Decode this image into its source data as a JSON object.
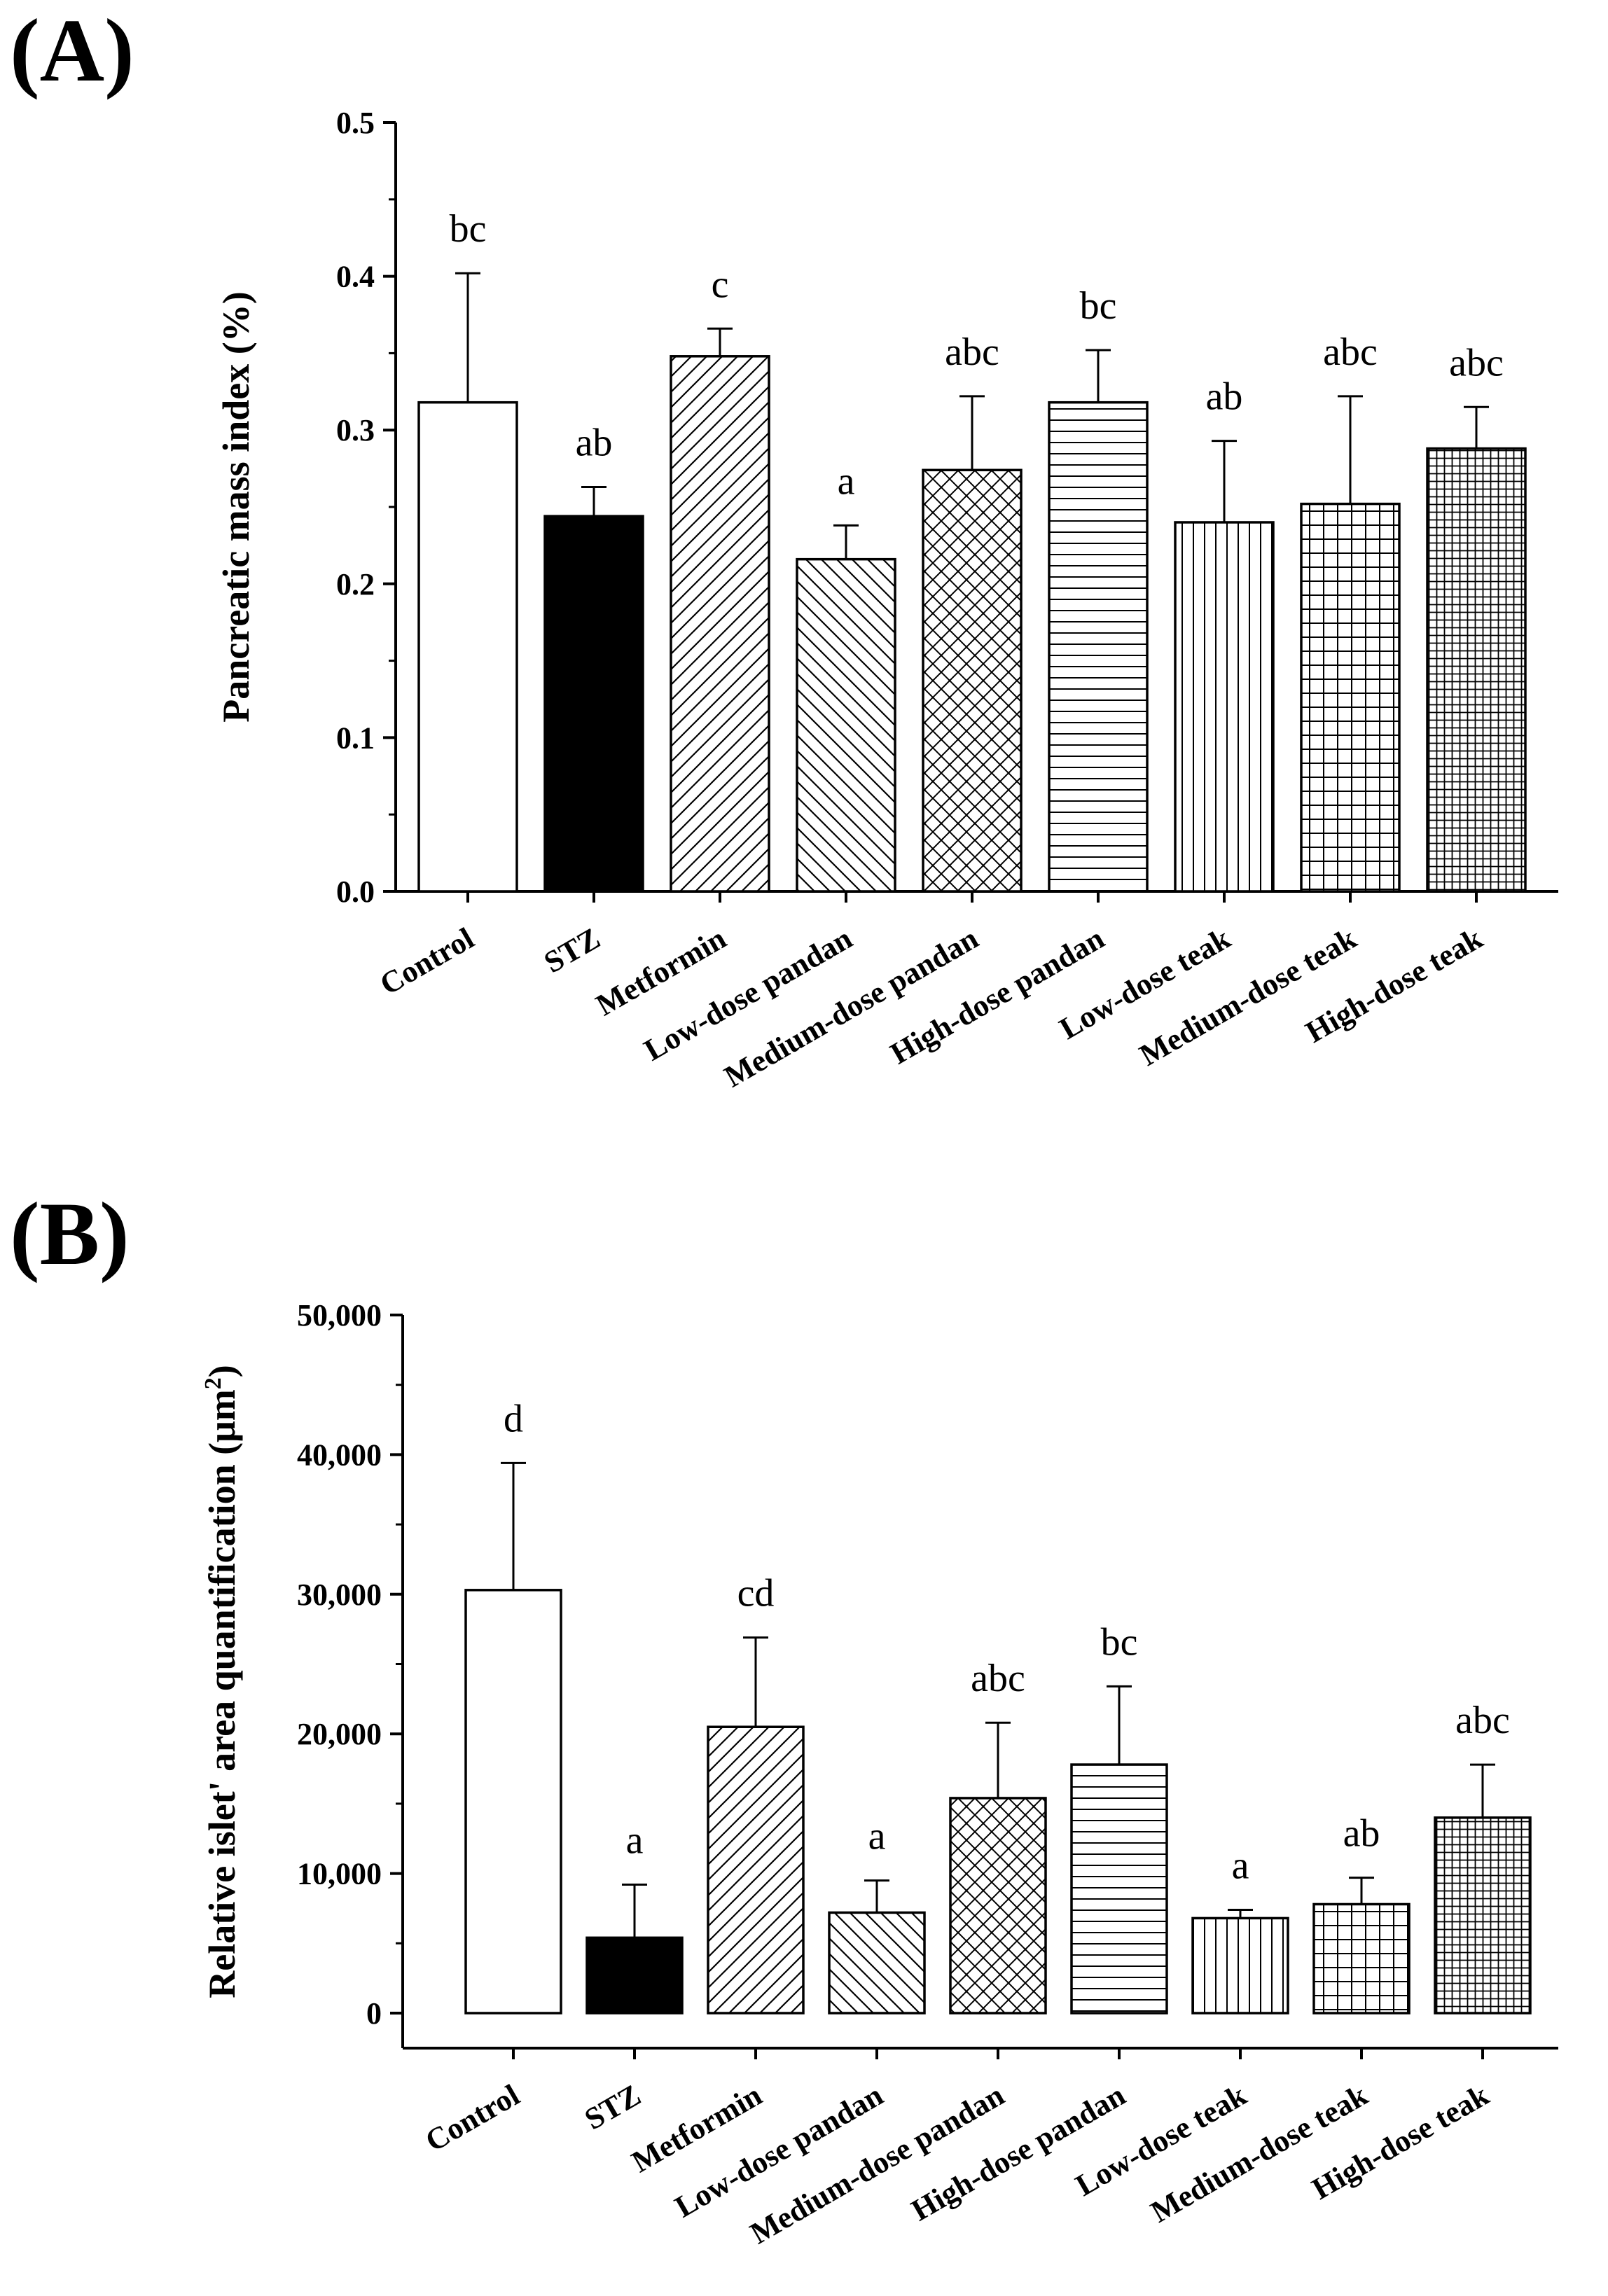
{
  "figure": {
    "panel_a_label": "(A)",
    "panel_b_label": "(B)"
  },
  "chart_data": [
    {
      "type": "bar",
      "panel": "A",
      "title": "",
      "xlabel": "",
      "ylabel": "Pancreatic mass index (%)",
      "ylim": [
        0,
        0.5
      ],
      "yticks": [
        0.0,
        0.1,
        0.2,
        0.3,
        0.4,
        0.5
      ],
      "ytick_labels": [
        "0.0",
        "0.1",
        "0.2",
        "0.3",
        "0.4",
        "0.5"
      ],
      "grid": false,
      "categories": [
        "Control",
        "STZ",
        "Metformin",
        "Low-dose pandan",
        "Medium-dose pandan",
        "High-dose pandan",
        "Low-dose teak",
        "Medium-dose teak",
        "High-dose teak"
      ],
      "values": [
        0.318,
        0.244,
        0.348,
        0.216,
        0.274,
        0.318,
        0.24,
        0.252,
        0.288
      ],
      "error": [
        0.084,
        0.019,
        0.018,
        0.022,
        0.048,
        0.034,
        0.053,
        0.07,
        0.027
      ],
      "significance": [
        "bc",
        "ab",
        "c",
        "a",
        "abc",
        "bc",
        "ab",
        "abc",
        "abc"
      ],
      "patterns": [
        "none",
        "solid",
        "diag-up",
        "diag-down",
        "crosshatch",
        "horizontal",
        "vertical",
        "grid",
        "fine-grid"
      ]
    },
    {
      "type": "bar",
      "panel": "B",
      "title": "",
      "xlabel": "",
      "ylabel": "Relative islet' area quantification (μm²)",
      "ylabel_main": "Relative islet' area quantification (μm",
      "ylabel_sup": "2",
      "ylabel_close": ")",
      "ylim": [
        0,
        50000
      ],
      "yticks": [
        0,
        10000,
        20000,
        30000,
        40000,
        50000
      ],
      "ytick_labels": [
        "0",
        "10,000",
        "20,000",
        "30,000",
        "40,000",
        "50,000"
      ],
      "grid": false,
      "categories": [
        "Control",
        "STZ",
        "Metformin",
        "Low-dose pandan",
        "Medium-dose pandan",
        "High-dose pandan",
        "Low-dose teak",
        "Medium-dose teak",
        "High-dose teak"
      ],
      "values": [
        30300,
        5400,
        20500,
        7200,
        15400,
        17800,
        6800,
        7800,
        14000
      ],
      "error": [
        9100,
        3800,
        6400,
        2300,
        5400,
        5600,
        600,
        1900,
        3800
      ],
      "significance": [
        "d",
        "a",
        "cd",
        "a",
        "abc",
        "bc",
        "a",
        "ab",
        "abc"
      ],
      "patterns": [
        "none",
        "solid",
        "diag-up",
        "diag-down",
        "crosshatch",
        "horizontal",
        "vertical",
        "grid",
        "fine-grid"
      ]
    }
  ]
}
